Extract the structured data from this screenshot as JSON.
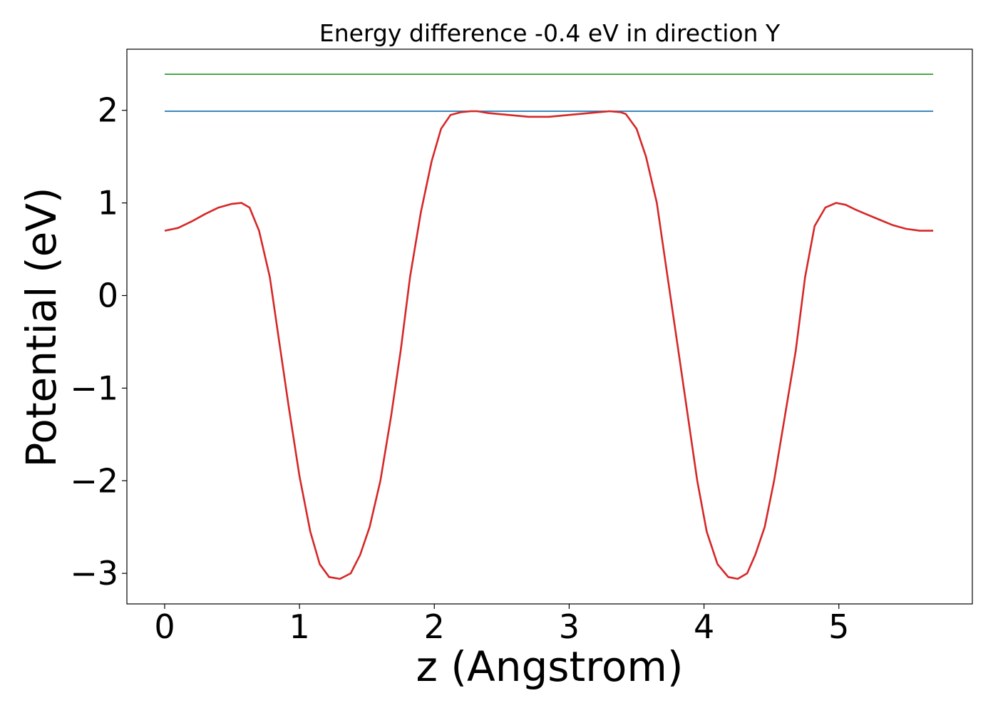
{
  "chart_data": {
    "type": "line",
    "title": "Energy difference -0.4 eV in direction Y",
    "xlabel": "z (Angstrom)",
    "ylabel": "Potential (eV)",
    "xlim": [
      -0.28,
      5.99
    ],
    "ylim": [
      -3.33,
      2.66
    ],
    "grid": false,
    "legend": "none",
    "x_ticks": [
      0,
      1,
      2,
      3,
      4,
      5
    ],
    "x_tick_labels": [
      "0",
      "1",
      "2",
      "3",
      "4",
      "5"
    ],
    "y_ticks": [
      -3,
      -2,
      -1,
      0,
      1,
      2
    ],
    "y_tick_labels": [
      "−3",
      "−2",
      "−1",
      "0",
      "1",
      "2"
    ],
    "series": [
      {
        "color": "#2ca02c",
        "x": [
          0,
          5.7
        ],
        "y": [
          2.39,
          2.39
        ]
      },
      {
        "color": "#1f77b4",
        "x": [
          0,
          5.7
        ],
        "y": [
          1.99,
          1.99
        ]
      },
      {
        "color": "#d62728",
        "x": [
          0,
          0.1,
          0.2,
          0.3,
          0.4,
          0.5,
          0.57,
          0.63,
          0.7,
          0.78,
          0.85,
          0.92,
          1.0,
          1.08,
          1.15,
          1.22,
          1.3,
          1.38,
          1.45,
          1.52,
          1.6,
          1.68,
          1.75,
          1.82,
          1.9,
          1.98,
          2.05,
          2.12,
          2.2,
          2.27,
          2.32,
          2.4,
          2.55,
          2.7,
          2.85,
          3.0,
          3.15,
          3.3,
          3.38,
          3.42,
          3.5,
          3.57,
          3.65,
          3.72,
          3.8,
          3.88,
          3.95,
          4.02,
          4.1,
          4.18,
          4.25,
          4.32,
          4.38,
          4.45,
          4.52,
          4.6,
          4.68,
          4.75,
          4.82,
          4.9,
          4.98,
          5.05,
          5.12,
          5.2,
          5.3,
          5.4,
          5.5,
          5.6,
          5.7
        ],
        "y": [
          0.7,
          0.73,
          0.8,
          0.88,
          0.95,
          0.99,
          1.0,
          0.95,
          0.7,
          0.2,
          -0.5,
          -1.2,
          -1.95,
          -2.55,
          -2.9,
          -3.04,
          -3.06,
          -3.0,
          -2.8,
          -2.5,
          -2.0,
          -1.3,
          -0.6,
          0.2,
          0.9,
          1.45,
          1.8,
          1.95,
          1.98,
          1.99,
          1.99,
          1.97,
          1.95,
          1.93,
          1.93,
          1.95,
          1.97,
          1.99,
          1.98,
          1.96,
          1.8,
          1.5,
          1.0,
          0.3,
          -0.5,
          -1.3,
          -2.0,
          -2.55,
          -2.9,
          -3.04,
          -3.06,
          -3.0,
          -2.8,
          -2.5,
          -2.0,
          -1.3,
          -0.6,
          0.2,
          0.75,
          0.95,
          1.0,
          0.98,
          0.93,
          0.88,
          0.82,
          0.76,
          0.72,
          0.7,
          0.7
        ]
      }
    ]
  }
}
